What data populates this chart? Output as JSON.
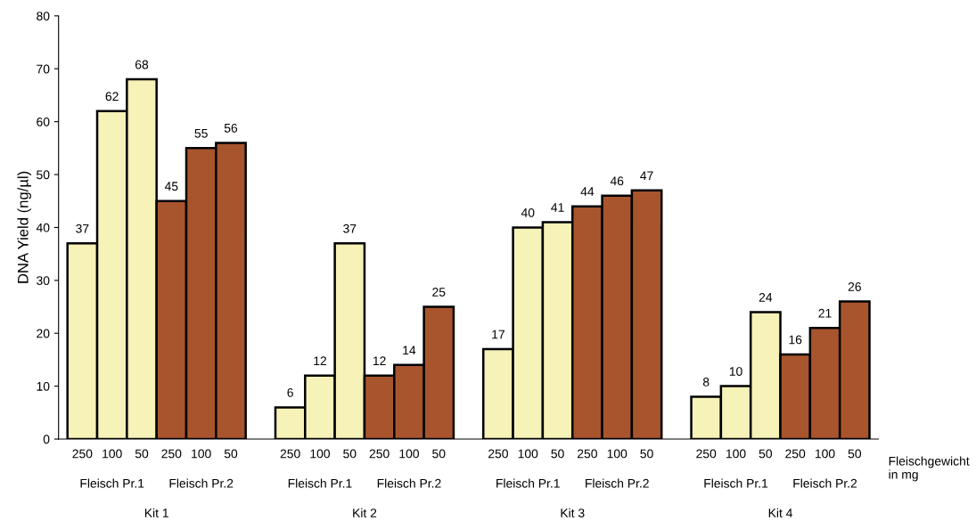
{
  "chart_data": {
    "type": "bar",
    "ylabel": "DNA Yield (ng/µl)",
    "xlabel": "Fleischgewicht\nin mg",
    "categories": [
      "250",
      "100",
      "50",
      "250",
      "100",
      "50",
      null,
      "250",
      "100",
      "50",
      "250",
      "100",
      "50",
      null,
      "250",
      "100",
      "50",
      "250",
      "100",
      "50",
      null,
      "250",
      "100",
      "50",
      "250",
      "100",
      "50"
    ],
    "values": [
      37,
      62,
      68,
      45,
      55,
      56,
      null,
      6,
      12,
      37,
      12,
      14,
      25,
      null,
      17,
      40,
      41,
      44,
      46,
      47,
      null,
      8,
      10,
      24,
      16,
      21,
      26
    ],
    "colors": [
      "#f6f2b8",
      "#f6f2b8",
      "#f6f2b8",
      "#a8552e",
      "#a8552e",
      "#a8552e",
      null,
      "#f6f2b8",
      "#f6f2b8",
      "#f6f2b8",
      "#a8552e",
      "#a8552e",
      "#a8552e",
      null,
      "#f6f2b8",
      "#f6f2b8",
      "#f6f2b8",
      "#a8552e",
      "#a8552e",
      "#a8552e",
      null,
      "#f6f2b8",
      "#f6f2b8",
      "#f6f2b8",
      "#a8552e",
      "#a8552e",
      "#a8552e"
    ],
    "data_labels": true,
    "ylim": [
      0,
      80
    ],
    "yticks": [
      0,
      10,
      20,
      30,
      40,
      50,
      60,
      70,
      80
    ],
    "grid": false,
    "legend": false,
    "annotations": [
      "Fleisch Pr.1",
      "Fleisch Pr.2",
      "Fleisch Pr.1",
      "Fleisch Pr.2",
      "Fleisch Pr.1",
      "Fleisch Pr.2",
      "Fleisch Pr.1",
      "Fleisch Pr.2",
      "Kit 1",
      "Kit 2",
      "Kit 3",
      "Kit 4"
    ]
  }
}
